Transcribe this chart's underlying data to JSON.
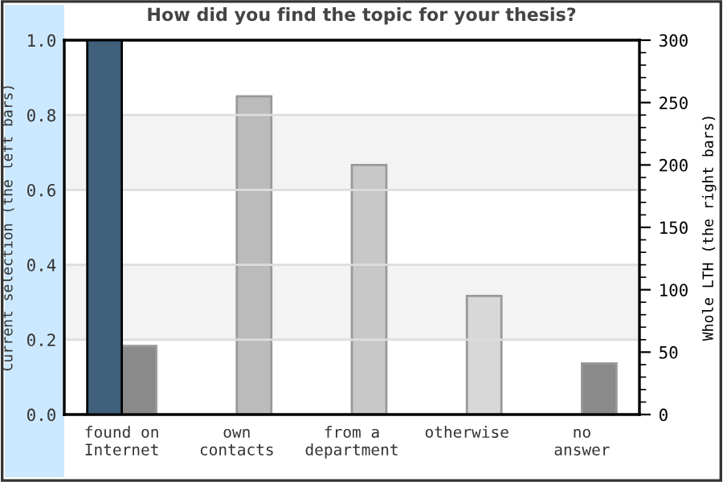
{
  "chart_data": {
    "type": "bar",
    "title": "How did you find the topic for your thesis?",
    "ylabel": "Current selection (the left bars)",
    "y2label": "Whole LTH (the right bars)",
    "categories": [
      "found on\nInternet",
      "own\ncontacts",
      "from a\ndepartment",
      "otherwise",
      "no\nanswer"
    ],
    "series": [
      {
        "color": "#3f5f7a",
        "values": [
          1.0,
          null,
          null,
          null,
          null
        ]
      },
      {
        "axis": "y2",
        "colors": [
          "#8a8a8a",
          "#bbbbbb",
          "#c8c8c8",
          "#d8d8d8",
          "#8a8a8a"
        ],
        "values": [
          55,
          255,
          200,
          95,
          41
        ]
      }
    ],
    "ylim": [
      0,
      1.0
    ],
    "yticks": [
      {
        "value": 0,
        "label": "0.0"
      },
      0.2,
      0.4,
      0.6,
      0.8,
      {
        "value": 1,
        "label": "1.0"
      }
    ],
    "y2lim": [
      0,
      300
    ],
    "y2ticks": [
      0,
      50,
      100,
      150,
      200,
      250,
      300
    ],
    "bands": [
      {
        "axis": "y",
        "from": 0.2,
        "to": 0.4,
        "color": "#f3f3f3"
      },
      {
        "axis": "y",
        "from": 0.6,
        "to": 0.8,
        "color": "#f3f3f3"
      }
    ],
    "grid": "y",
    "legend": false
  }
}
